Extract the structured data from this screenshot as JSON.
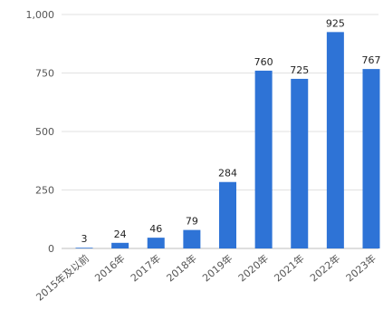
{
  "chart_data": {
    "type": "bar",
    "categories": [
      "2015年及以前",
      "2016年",
      "2017年",
      "2018年",
      "2019年",
      "2020年",
      "2021年",
      "2022年",
      "2023年"
    ],
    "values": [
      3,
      24,
      46,
      79,
      284,
      760,
      725,
      925,
      767
    ],
    "data_labels": [
      "3",
      "24",
      "46",
      "79",
      "284",
      "760",
      "725",
      "925",
      "767"
    ],
    "y_ticks": [
      0,
      250,
      500,
      750,
      1000
    ],
    "y_tick_labels": [
      "0",
      "250",
      "500",
      "750",
      "1,000"
    ],
    "ylim": [
      0,
      1000
    ],
    "grid": true,
    "legend": "none",
    "bar_color": "#2e73d6",
    "grid_color": "#e2e2e2",
    "axis_color": "#bdbdbd"
  }
}
